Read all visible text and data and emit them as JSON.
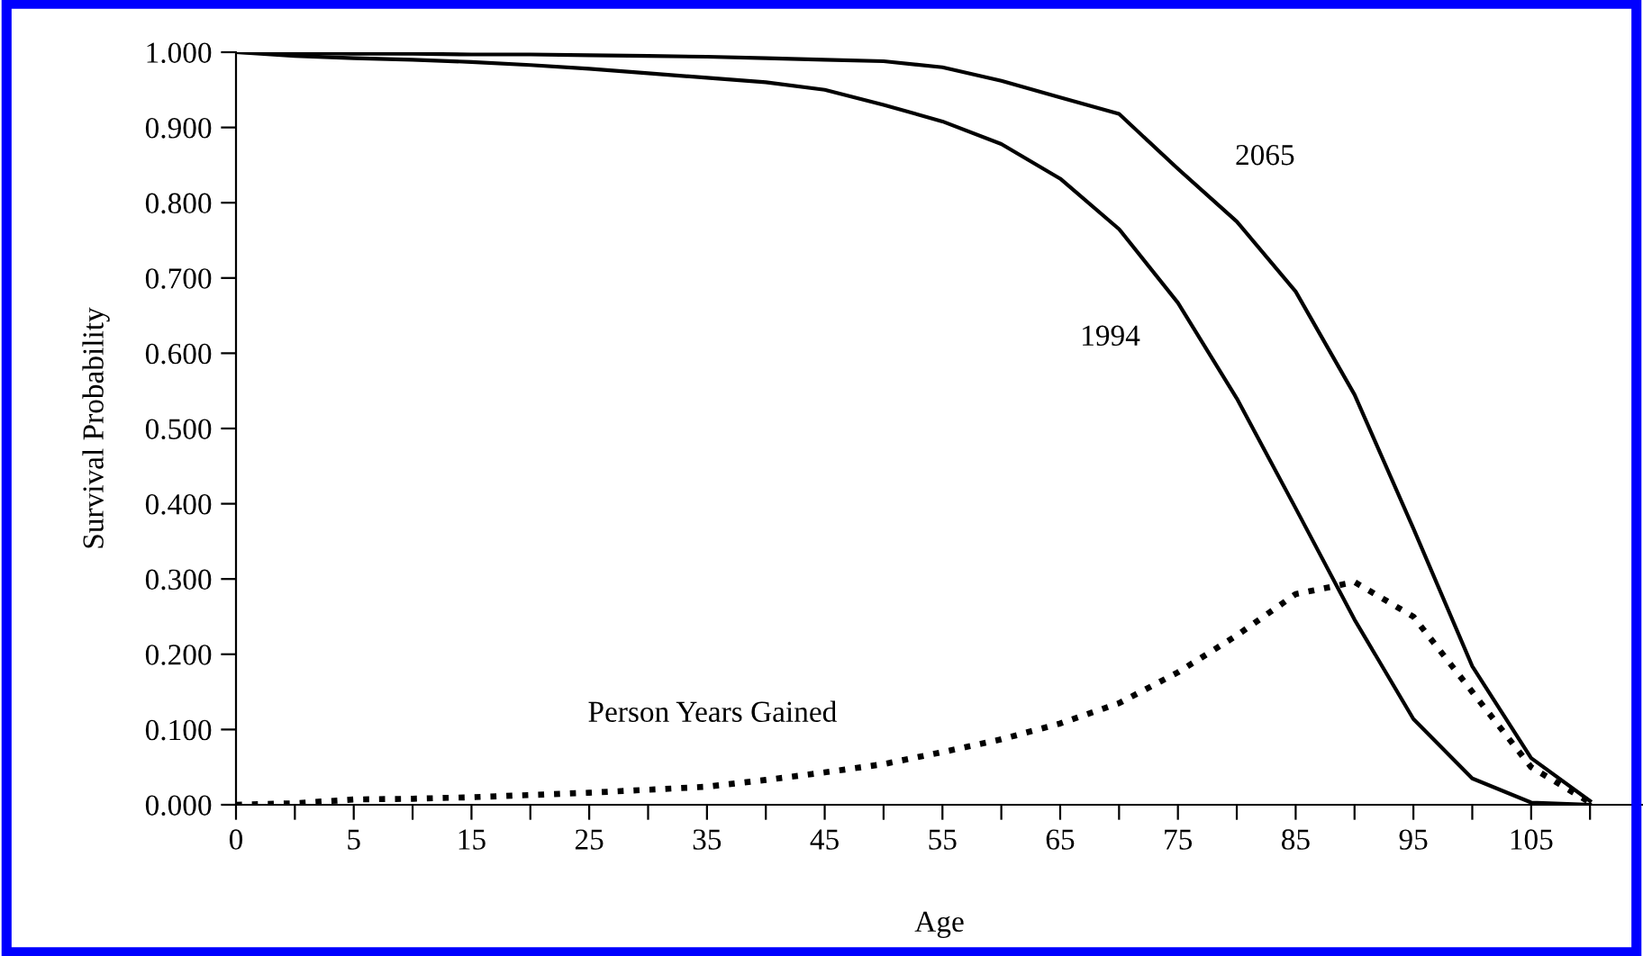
{
  "chart_data": {
    "type": "line",
    "xlabel": "Age",
    "ylabel": "Survival Probability",
    "categories": [
      "0",
      null,
      "5",
      null,
      "15",
      null,
      "25",
      null,
      "35",
      null,
      "45",
      null,
      "55",
      null,
      "65",
      null,
      "75",
      null,
      "85",
      null,
      "95",
      null,
      "105",
      null
    ],
    "series": [
      {
        "name": "1994",
        "color": "#000000",
        "line_style": "solid",
        "values": [
          1.0,
          0.995,
          0.992,
          0.99,
          0.987,
          0.983,
          0.978,
          0.972,
          0.966,
          0.96,
          0.95,
          0.93,
          0.908,
          0.878,
          0.832,
          0.765,
          0.667,
          0.54,
          0.394,
          0.246,
          0.114,
          0.035,
          0.003,
          0.0
        ]
      },
      {
        "name": "2065",
        "color": "#000000",
        "line_style": "solid",
        "values": [
          1.0,
          0.999,
          0.998,
          0.998,
          0.997,
          0.997,
          0.996,
          0.995,
          0.994,
          0.992,
          0.99,
          0.988,
          0.98,
          0.962,
          0.94,
          0.918,
          0.845,
          0.775,
          0.682,
          0.545,
          0.367,
          0.184,
          0.062,
          0.005
        ]
      },
      {
        "name": "Person Years Gained",
        "color": "#000000",
        "line_style": "dotted",
        "values": [
          0.0,
          0.002,
          0.007,
          0.008,
          0.01,
          0.013,
          0.016,
          0.02,
          0.024,
          0.033,
          0.043,
          0.054,
          0.07,
          0.087,
          0.108,
          0.135,
          0.176,
          0.225,
          0.28,
          0.296,
          0.25,
          0.15,
          0.05,
          0.003
        ]
      }
    ],
    "ylim": [
      0,
      1
    ],
    "yticks": [
      {
        "value": 0,
        "label": "0.000"
      },
      {
        "value": 0.1,
        "label": "0.100"
      },
      {
        "value": 0.2,
        "label": "0.200"
      },
      {
        "value": 0.3,
        "label": "0.300"
      },
      {
        "value": 0.4,
        "label": "0.400"
      },
      {
        "value": 0.5,
        "label": "0.500"
      },
      {
        "value": 0.6,
        "label": "0.600"
      },
      {
        "value": 0.7,
        "label": "0.700"
      },
      {
        "value": 0.8,
        "label": "0.800"
      },
      {
        "value": 0.9,
        "label": "0.900"
      },
      {
        "value": 1,
        "label": "1.000"
      }
    ],
    "grid": false,
    "legend": false,
    "marker": "none"
  }
}
